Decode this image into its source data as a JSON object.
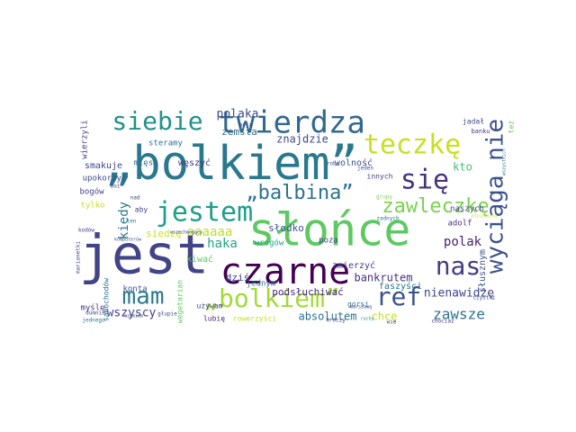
{
  "words": [
    {
      "text": "„bolkiem”",
      "color": "#2a788e",
      "weight": 1.0
    },
    {
      "text": "jest",
      "color": "#414487",
      "weight": 0.95
    },
    {
      "text": "słońce",
      "color": "#5ec962",
      "weight": 0.9
    },
    {
      "text": "czarne",
      "color": "#440154",
      "weight": 0.78
    },
    {
      "text": "twierdza",
      "color": "#31688e",
      "weight": 0.65
    },
    {
      "text": "siebie",
      "color": "#21918c",
      "weight": 0.55
    },
    {
      "text": "teczkę",
      "color": "#c8e020",
      "weight": 0.55
    },
    {
      "text": "wyciąga nie",
      "color": "#3b528b",
      "weight": 0.55
    },
    {
      "text": "jestem",
      "color": "#1f9e89",
      "weight": 0.5
    },
    {
      "text": "się",
      "color": "#46337e",
      "weight": 0.5
    },
    {
      "text": "„balbina”",
      "color": "#2c728e",
      "weight": 0.45
    },
    {
      "text": "zawleczkę",
      "color": "#7ad151",
      "weight": 0.45
    },
    {
      "text": "nas",
      "color": "#433e85",
      "weight": 0.5
    },
    {
      "text": "mam",
      "color": "#2a788e",
      "weight": 0.45
    },
    {
      "text": "„bolkiem”",
      "color": "#a2da37",
      "weight": 0.45
    },
    {
      "text": "ref",
      "color": "#3b528b",
      "weight": 0.45
    },
    {
      "text": "zawsze",
      "color": "#2c728e",
      "weight": 0.3
    },
    {
      "text": "nienawidzę",
      "color": "#414487",
      "weight": 0.3
    },
    {
      "text": "wszyscy",
      "color": "#433e85",
      "weight": 0.28
    },
    {
      "text": "kiedy",
      "color": "#2a788e",
      "weight": 0.28
    },
    {
      "text": "haka",
      "color": "#20a486",
      "weight": 0.28
    },
    {
      "text": "polak",
      "color": "#481f70",
      "weight": 0.27
    },
    {
      "text": "aaaaaa",
      "color": "#bddf26",
      "weight": 0.27
    },
    {
      "text": "polaka",
      "color": "#3e4989",
      "weight": 0.25
    },
    {
      "text": "bankrutem",
      "color": "#46327e",
      "weight": 0.22
    },
    {
      "text": "absolutem",
      "color": "#2d708e",
      "weight": 0.22
    },
    {
      "text": "chcę",
      "color": "#c2df23",
      "weight": 0.22
    },
    {
      "text": "kto",
      "color": "#44bf70",
      "weight": 0.22
    },
    {
      "text": "znajdzie",
      "color": "#3e4a89",
      "weight": 0.22
    },
    {
      "text": "zemsta",
      "color": "#31688e",
      "weight": 0.2
    },
    {
      "text": "podsłuchiwać",
      "color": "#482878",
      "weight": 0.2
    },
    {
      "text": "słusznym",
      "color": "#3b528b",
      "weight": 0.2
    },
    {
      "text": "słodko",
      "color": "#3b528b",
      "weight": 0.2
    },
    {
      "text": "siedzę",
      "color": "#c8e020",
      "weight": 0.2
    },
    {
      "text": "dziś",
      "color": "#3e4989",
      "weight": 0.2
    },
    {
      "text": "smakuje",
      "color": "#414487",
      "weight": 0.2
    },
    {
      "text": "węszyć",
      "color": "#46337e",
      "weight": 0.2
    },
    {
      "text": "wolność",
      "color": "#3b528b",
      "weight": 0.18
    },
    {
      "text": "steramy",
      "color": "#2c728e",
      "weight": 0.18
    },
    {
      "text": "mięsa",
      "color": "#31688e",
      "weight": 0.18
    },
    {
      "text": "zmierzyć",
      "color": "#433e85",
      "weight": 0.18
    },
    {
      "text": "kiwać",
      "color": "#5ec962",
      "weight": 0.18
    },
    {
      "text": "faszyści",
      "color": "#2a788e",
      "weight": 0.18
    },
    {
      "text": "upokorzyć",
      "color": "#3e4989",
      "weight": 0.17
    },
    {
      "text": "wrogów",
      "color": "#20a486",
      "weight": 0.17
    },
    {
      "text": "poza",
      "color": "#414487",
      "weight": 0.17
    },
    {
      "text": "adolf",
      "color": "#46327e",
      "weight": 0.17
    },
    {
      "text": "naszych",
      "color": "#433e85",
      "weight": 0.15
    },
    {
      "text": "jednym",
      "color": "#2a788e",
      "weight": 0.15
    },
    {
      "text": "myślę",
      "color": "#46327e",
      "weight": 0.15
    },
    {
      "text": "konta",
      "color": "#3b528b",
      "weight": 0.14
    },
    {
      "text": "tylko",
      "color": "#c2df23",
      "weight": 0.14
    },
    {
      "text": "bogów",
      "color": "#414487",
      "weight": 0.14
    },
    {
      "text": "aby",
      "color": "#414487",
      "weight": 0.14
    },
    {
      "text": "gorsi",
      "color": "#2c728e",
      "weight": 0.14
    },
    {
      "text": "lubię",
      "color": "#482878",
      "weight": 0.14
    },
    {
      "text": "rowerzyści",
      "color": "#c8e020",
      "weight": 0.14
    },
    {
      "text": "jadał",
      "color": "#3e4989",
      "weight": 0.13
    },
    {
      "text": "wierzyli",
      "color": "#433e85",
      "weight": 0.13
    },
    {
      "text": "samochodów",
      "color": "#2c728e",
      "weight": 0.13
    },
    {
      "text": "wegetarian",
      "color": "#5ec962",
      "weight": 0.13
    },
    {
      "text": "innych",
      "color": "#433e85",
      "weight": 0.13
    },
    {
      "text": "używam",
      "color": "#414487",
      "weight": 0.12
    },
    {
      "text": "banku",
      "color": "#433e85",
      "weight": 0.12
    },
    {
      "text": "też",
      "color": "#5ec962",
      "weight": 0.12
    },
    {
      "text": "robi",
      "color": "#414487",
      "weight": 0.1
    },
    {
      "text": "jeden",
      "color": "#3b528b",
      "weight": 0.1
    },
    {
      "text": "czystki",
      "color": "#3b528b",
      "weight": 0.1
    },
    {
      "text": "kroczy",
      "color": "#433e85",
      "weight": 0.1
    },
    {
      "text": "chociaż",
      "color": "#46327e",
      "weight": 0.1
    },
    {
      "text": "wie",
      "color": "#433e85",
      "weight": 0.1
    },
    {
      "text": "głupie",
      "color": "#3e4989",
      "weight": 0.1
    },
    {
      "text": "jednego",
      "color": "#2a788e",
      "weight": 0.1
    },
    {
      "text": "dumnie",
      "color": "#3e4989",
      "weight": 0.1
    },
    {
      "text": "nad",
      "color": "#414487",
      "weight": 0.1
    },
    {
      "text": "boi",
      "color": "#414487",
      "weight": 0.1
    },
    {
      "text": "ten",
      "color": "#2c728e",
      "weight": 0.09
    },
    {
      "text": "kodów",
      "color": "#414487",
      "weight": 0.09
    },
    {
      "text": "marionetki",
      "color": "#414487",
      "weight": 0.09
    },
    {
      "text": "zadnych",
      "color": "#2a788e",
      "weight": 0.09
    },
    {
      "text": "marszawą",
      "color": "#433e85",
      "weight": 0.09
    },
    {
      "text": "wszechmogący",
      "color": "#3e4989",
      "weight": 0.09
    },
    {
      "text": "boją",
      "color": "#414487",
      "weight": 0.09
    },
    {
      "text": "grupy",
      "color": "#7ad151",
      "weight": 0.09
    },
    {
      "text": "rozumiem",
      "color": "#3e4989",
      "weight": 0.08
    },
    {
      "text": "komputerów",
      "color": "#3b528b",
      "weight": 0.08
    },
    {
      "text": "ruchy",
      "color": "#21918c",
      "weight": 0.08
    },
    {
      "text": "wszystkich",
      "color": "#2c728e",
      "weight": 0.08
    },
    {
      "text": "zniszczeni",
      "color": "#c8e020",
      "weight": 0.07
    }
  ]
}
